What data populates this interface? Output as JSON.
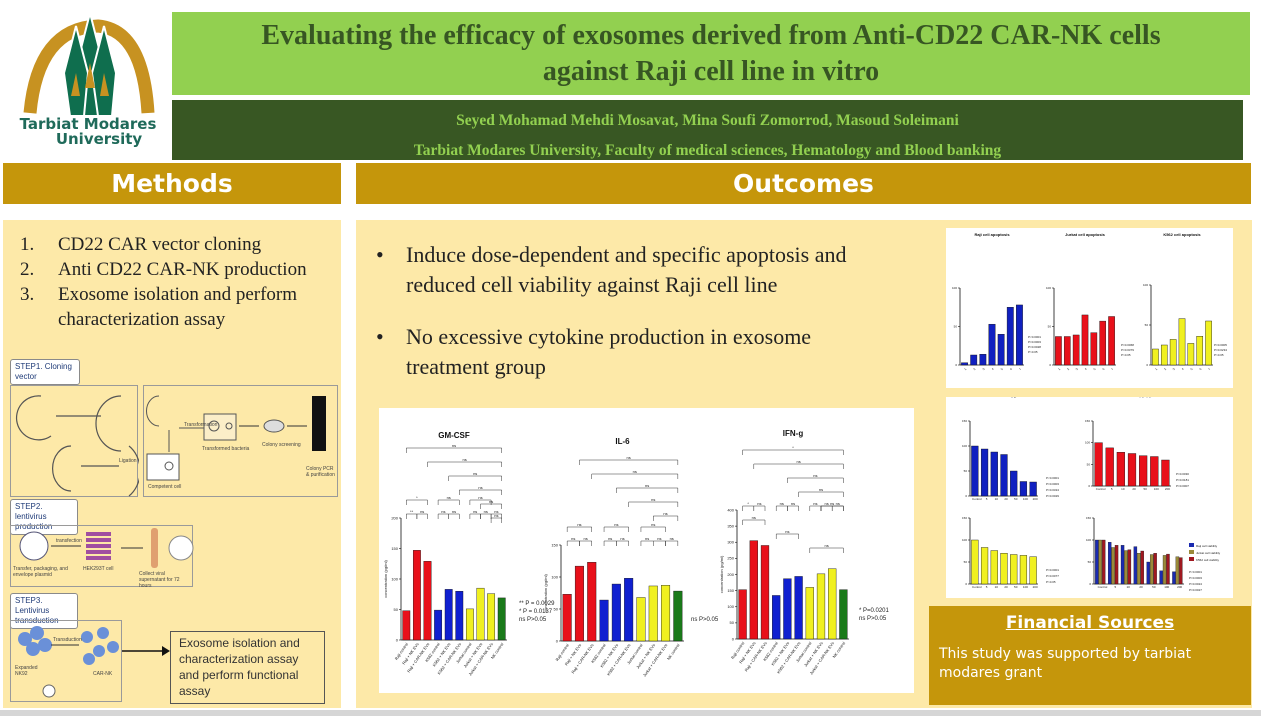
{
  "logo": {
    "line1": "Tarbiat Modares",
    "line2": "University"
  },
  "title": {
    "line1": "Evaluating the efficacy of exosomes derived from Anti-CD22 CAR-NK cells",
    "line2": "against Raji cell line in vitro"
  },
  "authors": {
    "names": "Seyed Mohamad Mehdi Mosavat, Mina Soufi Zomorrod, Masoud Soleimani",
    "affiliation": "Tarbiat Modares University, Faculty of medical sciences, Hematology and Blood banking"
  },
  "methods": {
    "header": "Methods",
    "items": [
      {
        "num": "1.",
        "text": "CD22 CAR vector cloning"
      },
      {
        "num": "2.",
        "text": "Anti CD22 CAR-NK production"
      },
      {
        "num": "3.",
        "text": "Exosome isolation and perform characterization assay"
      }
    ],
    "diagram": {
      "step1": "STEP1. Cloning vector",
      "step2": "STEP2. lentivirus production",
      "step3": "STEP3. Lentivirus transduction",
      "labels": {
        "transformation": "Transformation",
        "transformed": "Transformed bacteria",
        "colony": "Colony screening",
        "pcr": "Colony PCR & purification",
        "competent": "Competent cell",
        "ligation": "Ligation",
        "transfection": "transfection",
        "hek": "HEK293T cell",
        "plasmids": "Transfer, packaging, and envelope plasmid",
        "collect": "Collect viral supernatant for 72 hours",
        "transduction": "Transduction",
        "expanded": "Expanded NK92",
        "carnk": "CAR-NK"
      },
      "final_box": "Exosome isolation and characterization assay and perform functional assay"
    }
  },
  "outcomes": {
    "header": "Outcomes",
    "bullets": [
      "Induce dose-dependent and specific apoptosis and reduced cell viability against Raji cell line",
      "No excessive cytokine production in exosome treatment group"
    ]
  },
  "financial": {
    "header": "Financial Sources",
    "text": "This study was supported by tarbiat modares grant"
  },
  "chart_data": [
    {
      "type": "bar",
      "title": "GM-CSF",
      "ylabel": "concentration (pg/ml)",
      "ylim": [
        0,
        200
      ],
      "ticks": [
        0,
        50,
        100,
        150,
        200
      ],
      "categories": [
        "Raji control",
        "Raji + NK EVs",
        "Raji + CAR-NK EVs",
        "K562 control",
        "K562 + NK EVs",
        "K562 + CAR-NK EVs",
        "Jurkat control",
        "Jurkat + NK EVs",
        "Jurkat + CAR-NK EVs",
        "NK control"
      ],
      "values": [
        48,
        147,
        129,
        49,
        83,
        80,
        51,
        85,
        76,
        69
      ],
      "colors": [
        "#e8101a",
        "#e8101a",
        "#e8101a",
        "#1020d0",
        "#1020d0",
        "#1020d0",
        "#f0f020",
        "#f0f020",
        "#f0f020",
        "#1a7a1a"
      ],
      "brackets": [
        [
          0,
          9,
          "ns"
        ],
        [
          2,
          9,
          "ns"
        ],
        [
          4,
          9,
          "ns"
        ],
        [
          5,
          9,
          "ns"
        ],
        [
          7,
          9,
          "ns"
        ],
        [
          8,
          9,
          "ns"
        ],
        [
          0,
          2,
          "*"
        ],
        [
          3,
          5,
          "ns"
        ],
        [
          6,
          8,
          "ns"
        ],
        [
          0,
          1,
          "**"
        ],
        [
          1,
          2,
          "ns"
        ],
        [
          3,
          4,
          "ns"
        ],
        [
          4,
          5,
          "ns"
        ],
        [
          6,
          7,
          "ns"
        ],
        [
          7,
          8,
          "ns"
        ],
        [
          8,
          9,
          "ns"
        ]
      ],
      "legend": [
        "** P = 0.0029",
        "* P = 0.0137",
        "ns P>0.05"
      ]
    },
    {
      "type": "bar",
      "title": "IL-6",
      "ylabel": "concentration (pg/ml)",
      "ylim": [
        0,
        150
      ],
      "ticks": [
        0,
        50,
        100,
        150
      ],
      "categories": [
        "Raji control",
        "Raji + NK EVs",
        "Raji + CAR-NK EVs",
        "K562 control",
        "K562 + NK EVs",
        "K562 + CAR-NK EVs",
        "Jurkat control",
        "Jurkat + NK EVs",
        "Jurkat + CAR-NK EVs",
        "NK control"
      ],
      "values": [
        73,
        117,
        123,
        64,
        89,
        98,
        68,
        86,
        87,
        78
      ],
      "colors": [
        "#e8101a",
        "#e8101a",
        "#e8101a",
        "#1020d0",
        "#1020d0",
        "#1020d0",
        "#f0f020",
        "#f0f020",
        "#f0f020",
        "#1a7a1a"
      ],
      "brackets": [
        [
          1,
          9,
          "ns"
        ],
        [
          2,
          9,
          "ns"
        ],
        [
          4,
          9,
          "ns"
        ],
        [
          5,
          9,
          "ns"
        ],
        [
          7,
          9,
          "ns"
        ],
        [
          0,
          2,
          "ns"
        ],
        [
          3,
          5,
          "ns"
        ],
        [
          6,
          8,
          "ns"
        ],
        [
          0,
          1,
          "ns"
        ],
        [
          1,
          2,
          "ns"
        ],
        [
          3,
          4,
          "ns"
        ],
        [
          4,
          5,
          "ns"
        ],
        [
          6,
          7,
          "ns"
        ],
        [
          7,
          8,
          "ns"
        ],
        [
          8,
          9,
          "ns"
        ]
      ],
      "legend": [
        "ns P>0.05"
      ]
    },
    {
      "type": "bar",
      "title": "IFN-g",
      "ylabel": "concentration (pg/ml)",
      "ylim": [
        0,
        400
      ],
      "ticks": [
        0,
        50,
        100,
        150,
        200,
        250,
        300,
        350,
        400
      ],
      "categories": [
        "Raji control",
        "Raji + NK EVs",
        "Raji + CAR-NK EVs",
        "K562 control",
        "K562 + NK EVs",
        "K562 + CAR-NK EVs",
        "Jurkat control",
        "Jurkat + NK EVs",
        "Jurkat + CAR-NK EVs",
        "NK control"
      ],
      "values": [
        153,
        305,
        290,
        135,
        187,
        194,
        160,
        202,
        218,
        153
      ],
      "colors": [
        "#e8101a",
        "#e8101a",
        "#e8101a",
        "#1020d0",
        "#1020d0",
        "#1020d0",
        "#f0f020",
        "#f0f020",
        "#f0f020",
        "#1a7a1a"
      ],
      "brackets": [
        [
          0,
          9,
          "*"
        ],
        [
          1,
          9,
          "ns"
        ],
        [
          4,
          9,
          "ns"
        ],
        [
          5,
          9,
          "ns"
        ],
        [
          7,
          9,
          "ns"
        ],
        [
          0,
          2,
          "ns"
        ],
        [
          3,
          5,
          "ns"
        ],
        [
          6,
          9,
          "ns"
        ],
        [
          0,
          1,
          "*"
        ],
        [
          1,
          2,
          "ns"
        ],
        [
          3,
          4,
          "ns"
        ],
        [
          4,
          5,
          "ns"
        ],
        [
          6,
          7,
          "ns"
        ],
        [
          7,
          8,
          "ns"
        ],
        [
          8,
          9,
          "ns"
        ]
      ],
      "legend": [
        "* P=0.0201",
        "ns P>0.05"
      ]
    },
    {
      "type": "bar",
      "title": "Raji cell apoptosis",
      "ylim": [
        0,
        100
      ],
      "ticks": [
        0,
        50,
        100
      ],
      "categories": [
        "1",
        "2",
        "3",
        "4",
        "5",
        "6",
        "7"
      ],
      "values": [
        3,
        13,
        14,
        53,
        40,
        75,
        78
      ],
      "colors": [
        "#1020c0"
      ],
      "legend": [
        "P<0.0001",
        "P=0.0003",
        "P=0.0028",
        "P>0.05"
      ]
    },
    {
      "type": "bar",
      "title": "Jurkat cell apoptosis",
      "ylim": [
        0,
        100
      ],
      "ticks": [
        0,
        50,
        100
      ],
      "categories": [
        "1",
        "2",
        "3",
        "4",
        "5",
        "6",
        "7"
      ],
      "values": [
        37,
        37,
        39,
        65,
        42,
        57,
        63
      ],
      "colors": [
        "#e8101a"
      ],
      "legend": [
        "P=0.0068",
        "P=0.0379",
        "P>0.05"
      ]
    },
    {
      "type": "bar",
      "title": "K562 cell apoptosis",
      "ylim": [
        0,
        100
      ],
      "ticks": [
        0,
        50,
        100
      ],
      "categories": [
        "1",
        "2",
        "3",
        "4",
        "5",
        "6",
        "7"
      ],
      "values": [
        20,
        25,
        32,
        58,
        27,
        36,
        55
      ],
      "colors": [
        "#f0f020"
      ],
      "legend": [
        "P=0.0005",
        "P=0.0234",
        "P>0.05"
      ]
    },
    {
      "type": "bar",
      "title": "Raji cell viability",
      "xlabel": "Concentration (µg)",
      "ylim": [
        0,
        150
      ],
      "ticks": [
        0,
        50,
        100,
        150
      ],
      "categories": [
        "Control",
        "5",
        "10",
        "20",
        "50",
        "100",
        "200"
      ],
      "values": [
        100,
        94,
        88,
        83,
        50,
        29,
        28
      ],
      "colors": [
        "#1020c0"
      ],
      "legend": [
        "P<0.0001",
        "P=0.0003",
        "P=0.0324",
        "P=0.0029"
      ]
    },
    {
      "type": "bar",
      "title": "K562 cell viability",
      "xlabel": "Concentration (µg)",
      "ylim": [
        0,
        150
      ],
      "ticks": [
        0,
        50,
        100,
        150
      ],
      "categories": [
        "Control",
        "5",
        "10",
        "20",
        "50",
        "100",
        "200"
      ],
      "values": [
        100,
        88,
        78,
        75,
        70,
        68,
        60
      ],
      "colors": [
        "#e8101a"
      ],
      "legend": [
        "P=0.0030",
        "P=0.0181",
        "P=0.0007"
      ]
    },
    {
      "type": "bar",
      "title": "Jurkat cell viability",
      "xlabel": "Concentration (µg)",
      "ylim": [
        0,
        150
      ],
      "ticks": [
        0,
        50,
        100,
        150
      ],
      "categories": [
        "Control",
        "5",
        "10",
        "20",
        "50",
        "100",
        "200"
      ],
      "values": [
        100,
        83,
        76,
        70,
        67,
        65,
        62
      ],
      "colors": [
        "#f0f020"
      ],
      "legend": [
        "P=0.0001",
        "P=0.0077",
        "P>0.05"
      ]
    },
    {
      "type": "bar",
      "title": "Cell viability comparison",
      "xlabel": "Concentration (µg)",
      "ylim": [
        0,
        150
      ],
      "ticks": [
        0,
        50,
        100,
        150
      ],
      "categories": [
        "Control",
        "5",
        "10",
        "20",
        "50",
        "100",
        "200"
      ],
      "series": [
        {
          "name": "Raji cell viability",
          "color": "#1a2ab0",
          "values": [
            100,
            95,
            88,
            85,
            50,
            30,
            28
          ]
        },
        {
          "name": "Jurkat cell viability",
          "color": "#9a8a3a",
          "values": [
            100,
            83,
            76,
            70,
            67,
            65,
            62
          ]
        },
        {
          "name": "K562 cell viability",
          "color": "#a01820",
          "values": [
            100,
            88,
            78,
            75,
            70,
            68,
            60
          ]
        }
      ],
      "legend": [
        "P<0.0001",
        "P=0.0003",
        "P=0.0024",
        "P=0.0027"
      ]
    }
  ]
}
